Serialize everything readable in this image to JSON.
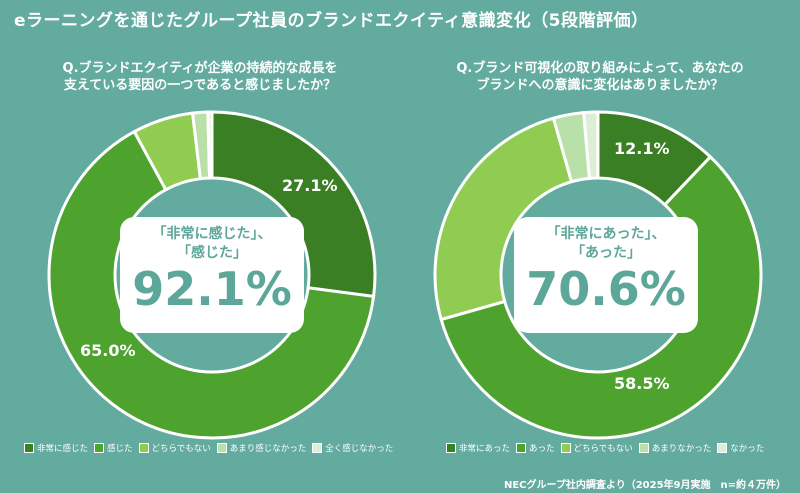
{
  "title": "eラーニングを通じたグループ社員のブランドエクイティ意識変化（5段階評価）",
  "colors": {
    "background": "#64ab9f",
    "c1": "#3b7f25",
    "c2": "#4ea22e",
    "c3": "#90cc52",
    "c4": "#b9e0a8",
    "c5": "#dcefd6"
  },
  "chart_data": [
    {
      "type": "pie",
      "question": [
        "Q.ブランドエクイティが企業の持続的な成長を",
        "支えている要因の一つであると感じましたか？"
      ],
      "categories": [
        "非常に感じた",
        "感じた",
        "どちらでもない",
        "あまり感じなかった",
        "全く感じなかった"
      ],
      "values": [
        27.1,
        65.0,
        6.0,
        1.5,
        0.4
      ],
      "labels": [
        "27.1%",
        "65.0%"
      ],
      "center_label": [
        "「非常に感じた」、",
        "「感じた」"
      ],
      "center_value": "92.1%"
    },
    {
      "type": "pie",
      "question": [
        "Q.ブランド可視化の取り組みによって、あなたの",
        "ブランドへの意識に変化はありましたか？"
      ],
      "categories": [
        "非常にあった",
        "あった",
        "どちらでもない",
        "あまりなかった",
        "なかった"
      ],
      "values": [
        12.1,
        58.5,
        25.0,
        3.0,
        1.4
      ],
      "labels": [
        "12.1%",
        "58.5%"
      ],
      "center_label": [
        "「非常にあった」、",
        "「あった」"
      ],
      "center_value": "70.6%"
    }
  ],
  "source": "NECグループ社内調査より（2025年9月実施　n=約４万件）"
}
